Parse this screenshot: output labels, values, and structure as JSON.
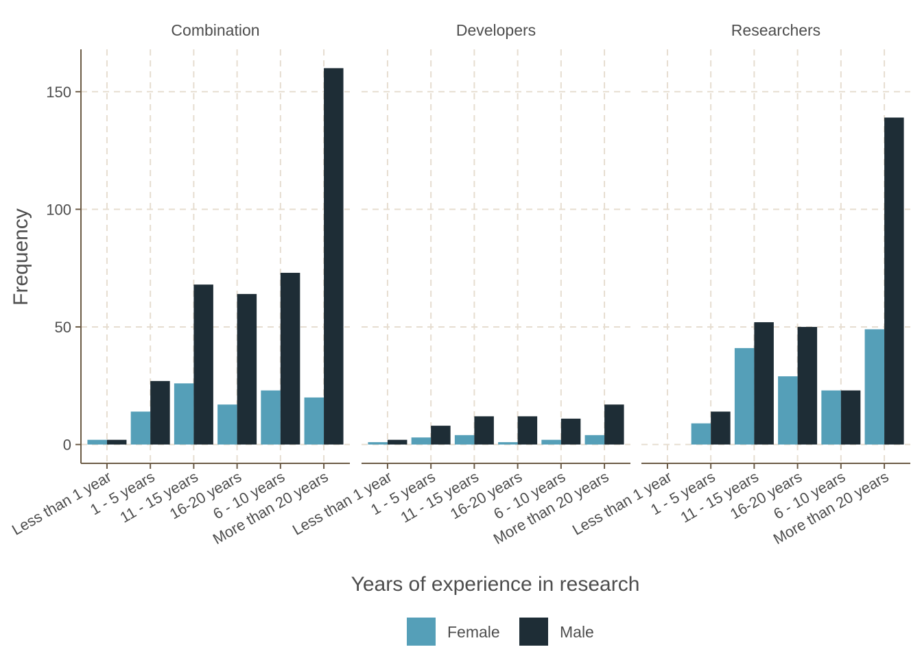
{
  "chart_data": {
    "type": "bar",
    "xlabel": "Years of experience in research",
    "ylabel": "Frequency",
    "ylim": [
      -8,
      168
    ],
    "yticks": [
      0,
      50,
      100,
      150
    ],
    "grid": "dashed major gridlines",
    "legend_position": "bottom",
    "categories": [
      "Less than 1 year",
      "1 - 5 years",
      "11 - 15 years",
      "16-20 years",
      "6 - 10 years",
      "More than 20 years"
    ],
    "series_names": [
      "Female",
      "Male"
    ],
    "colors": {
      "Female": "#559FB8",
      "Male": "#1E2D36",
      "grid": "#E6DDD0",
      "axis": "#6B5A45"
    },
    "panels": [
      {
        "title": "Combination",
        "series": [
          {
            "name": "Female",
            "values": [
              2,
              14,
              26,
              17,
              23,
              20
            ]
          },
          {
            "name": "Male",
            "values": [
              2,
              27,
              68,
              64,
              73,
              160
            ]
          }
        ]
      },
      {
        "title": "Developers",
        "series": [
          {
            "name": "Female",
            "values": [
              1,
              3,
              4,
              1,
              2,
              4
            ]
          },
          {
            "name": "Male",
            "values": [
              2,
              8,
              12,
              12,
              11,
              17
            ]
          }
        ]
      },
      {
        "title": "Researchers",
        "series": [
          {
            "name": "Female",
            "values": [
              0,
              9,
              41,
              29,
              23,
              49
            ]
          },
          {
            "name": "Male",
            "values": [
              0,
              14,
              52,
              50,
              23,
              139
            ]
          }
        ]
      }
    ]
  }
}
